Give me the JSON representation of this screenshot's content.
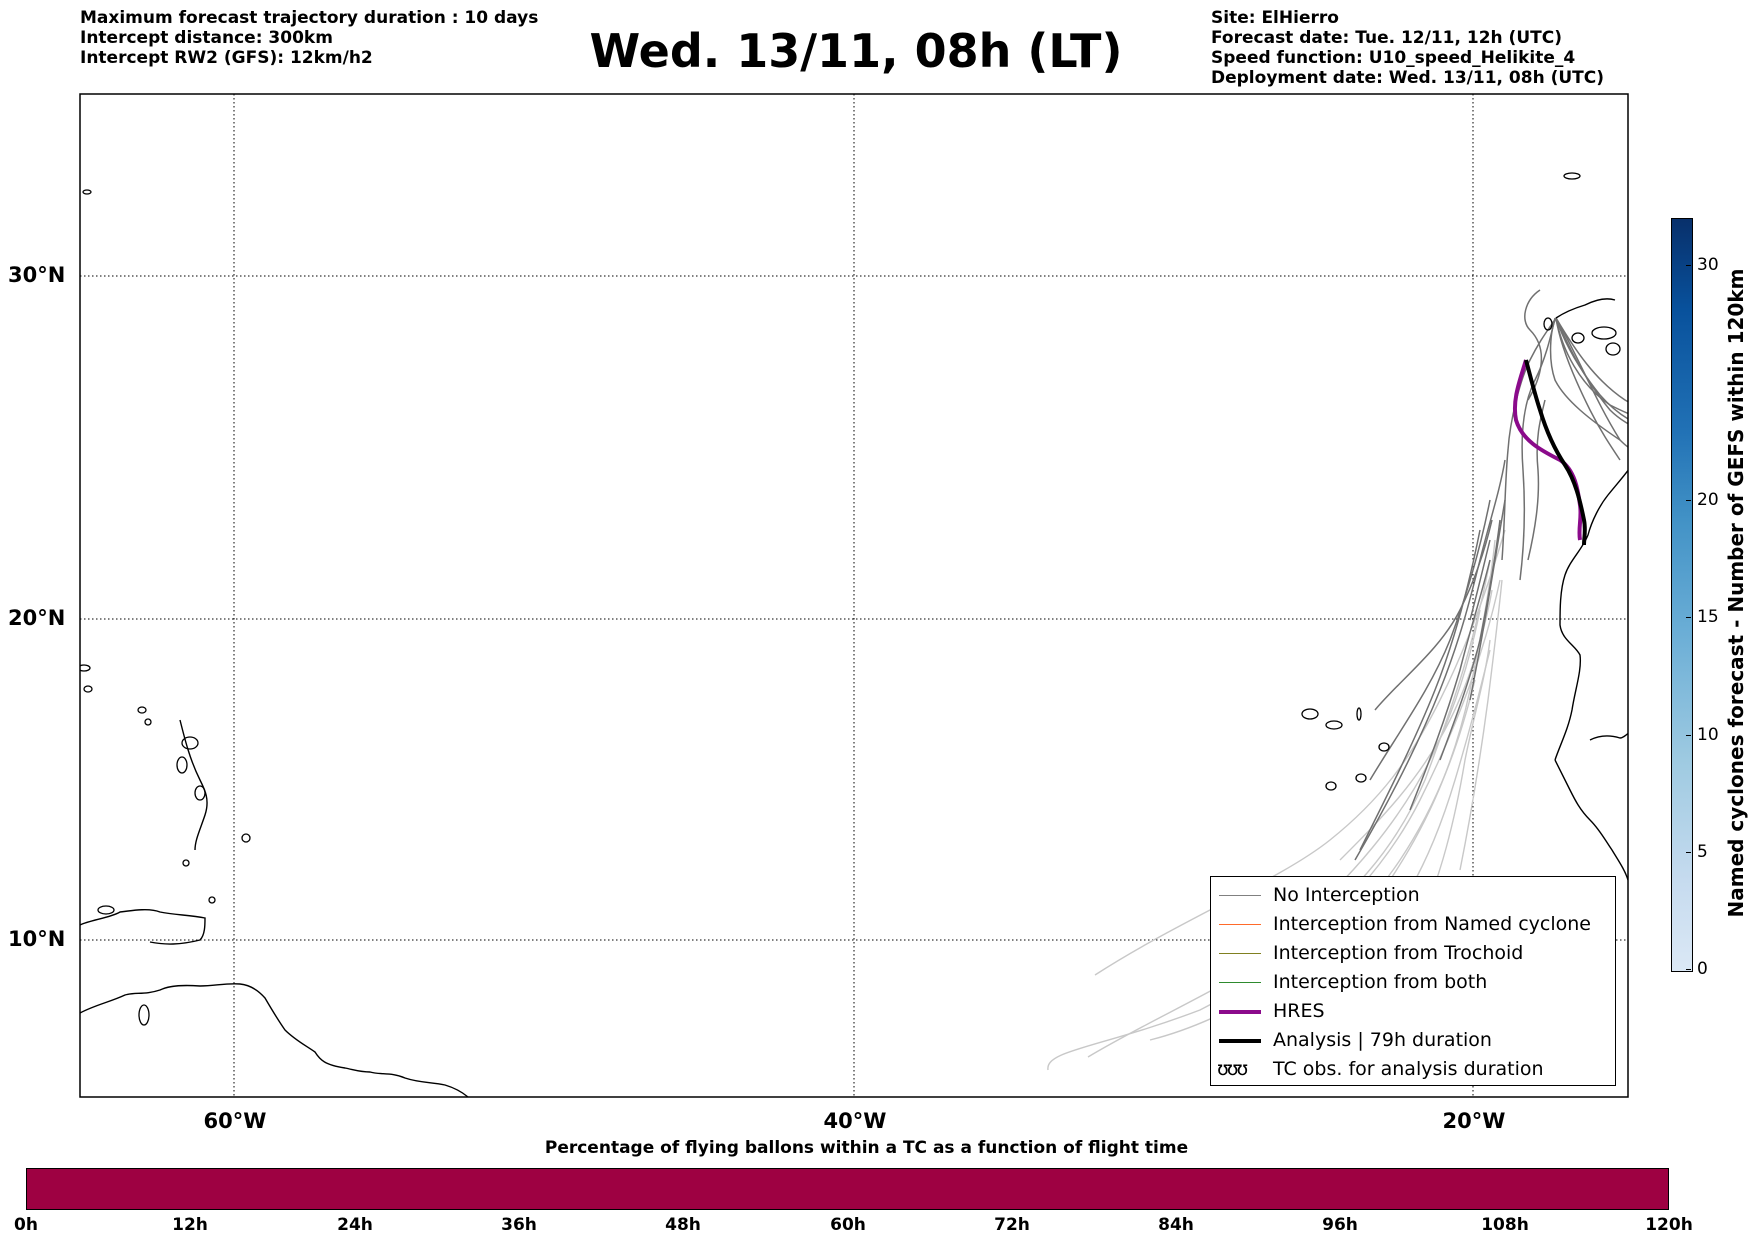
{
  "header": {
    "left_lines": [
      "Maximum forecast trajectory duration : 10 days",
      "Intercept distance: 300km",
      "Intercept RW2 (GFS):  12km/h2"
    ],
    "title": "Wed. 13/11, 08h (LT)",
    "right_lines": [
      "Site: ElHierro",
      "Forecast date: Tue. 12/11, 12h (UTC)",
      "Speed function: U10_speed_Helikite_4",
      "Deployment date: Wed. 13/11, 08h (UTC)"
    ]
  },
  "map": {
    "lon_range": [
      -65,
      15
    ],
    "lat_range": [
      5,
      35
    ],
    "lat_labels": [
      "30°N",
      "20°N",
      "10°N"
    ],
    "lon_labels": [
      "60°W",
      "40°W",
      "20°W"
    ],
    "gridlines": "dotted",
    "colors": {
      "no_interception": "#777777",
      "no_interception_light": "#c8c8c8",
      "hres": "#8b0a8b",
      "analysis": "#000000"
    }
  },
  "legend": {
    "items": [
      {
        "label": "No Interception",
        "color": "#808080",
        "width": 1
      },
      {
        "label": "Interception from Named cyclone",
        "color": "#ff6a2a",
        "width": 1
      },
      {
        "label": "Interception from Trochoid",
        "color": "#808020",
        "width": 1
      },
      {
        "label": "Interception from both",
        "color": "#2e8b2e",
        "width": 1
      },
      {
        "label": "HRES",
        "color": "#8b0a8b",
        "width": 4
      },
      {
        "label": "Analysis | 79h duration",
        "color": "#000000",
        "width": 4
      }
    ],
    "tc_obs_label": "TC obs. for analysis duration",
    "tc_glyph": "ʊʊʊ"
  },
  "colorbar": {
    "label": "Named cyclones forecast - Number of GEFS within 120km",
    "ticks": [
      "0",
      "5",
      "10",
      "15",
      "20",
      "30"
    ],
    "range": [
      0,
      32
    ]
  },
  "bottom": {
    "title": "Percentage of flying ballons within a TC as a function of flight time",
    "ticks": [
      "0h",
      "12h",
      "24h",
      "36h",
      "48h",
      "60h",
      "72h",
      "84h",
      "96h",
      "108h",
      "120h"
    ],
    "bar_color": "#9e0142"
  }
}
